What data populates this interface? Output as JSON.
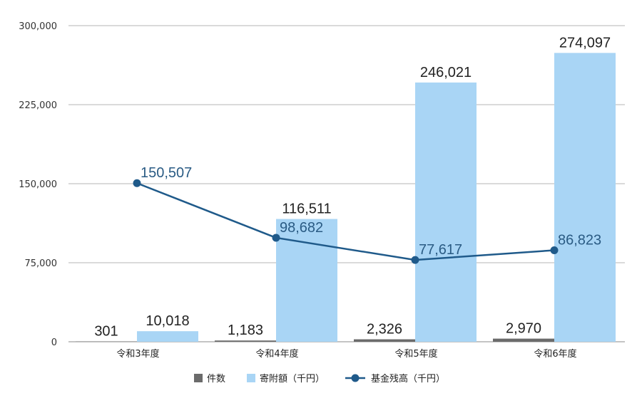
{
  "chart_data": {
    "type": "bar",
    "categories": [
      "令和3年度",
      "令和4年度",
      "令和5年度",
      "令和6年度"
    ],
    "series": [
      {
        "name": "件数",
        "type": "bar",
        "values": [
          301,
          1183,
          2326,
          2970
        ],
        "color": "#6b6b6b"
      },
      {
        "name": "寄附額（千円）",
        "type": "bar",
        "values": [
          10018,
          116511,
          246021,
          274097
        ],
        "color": "#a9d5f5"
      },
      {
        "name": "基金残高（千円）",
        "type": "line",
        "values": [
          150507,
          98682,
          77617,
          86823
        ],
        "color": "#1f5a8a"
      }
    ],
    "data_labels": {
      "件数": [
        "301",
        "1,183",
        "2,326",
        "2,970"
      ],
      "寄附額（千円）": [
        "10,018",
        "116,511",
        "246,021",
        "274,097"
      ],
      "基金残高（千円）": [
        "150,507",
        "98,682",
        "77,617",
        "86,823"
      ]
    },
    "y_ticks": [
      "0",
      "75,000",
      "150,000",
      "225,000",
      "300,000"
    ],
    "y_tick_values": [
      0,
      75000,
      150000,
      225000,
      300000
    ],
    "ylim": [
      0,
      300000
    ],
    "grid": true,
    "legend_position": "bottom-center",
    "legend": [
      "件数",
      "寄附額（千円）",
      "基金残高（千円）"
    ]
  }
}
